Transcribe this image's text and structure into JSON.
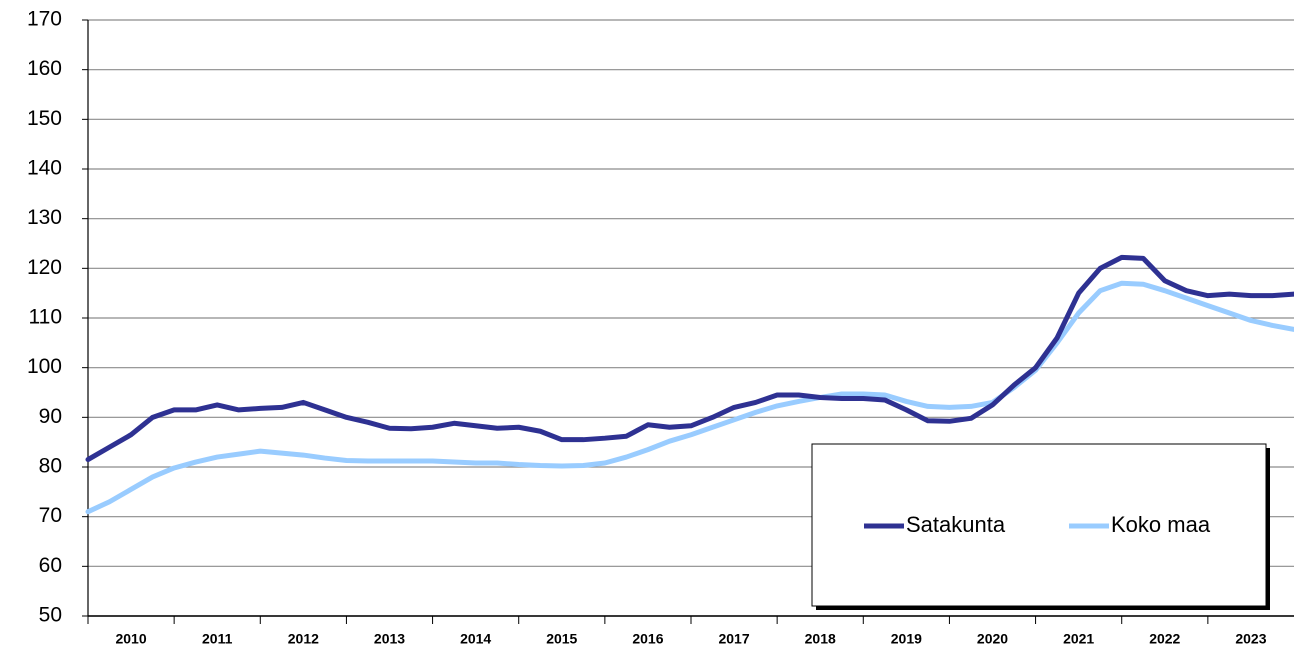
{
  "chart_data": {
    "type": "line",
    "x": [
      2010,
      2010.25,
      2010.5,
      2010.75,
      2011,
      2011.25,
      2011.5,
      2011.75,
      2012,
      2012.25,
      2012.5,
      2012.75,
      2013,
      2013.25,
      2013.5,
      2013.75,
      2014,
      2014.25,
      2014.5,
      2014.75,
      2015,
      2015.25,
      2015.5,
      2015.75,
      2016,
      2016.25,
      2016.5,
      2016.75,
      2017,
      2017.25,
      2017.5,
      2017.75,
      2018,
      2018.25,
      2018.5,
      2018.75,
      2019,
      2019.25,
      2019.5,
      2019.75,
      2020,
      2020.25,
      2020.5,
      2020.75,
      2021,
      2021.25,
      2021.5,
      2021.75,
      2022,
      2022.25,
      2022.5,
      2022.75,
      2023,
      2023.25,
      2023.5,
      2023.75,
      2024
    ],
    "series": [
      {
        "name": "Satakunta",
        "color": "#2e3192",
        "values": [
          81.5,
          84,
          86.5,
          90,
          91.5,
          91.5,
          92.5,
          91.5,
          91.8,
          92,
          93,
          91.5,
          90,
          89,
          87.8,
          87.7,
          88,
          88.8,
          88.3,
          87.8,
          88,
          87.2,
          85.5,
          85.5,
          85.8,
          86.2,
          88.5,
          88,
          88.3,
          90,
          92,
          93,
          94.5,
          94.5,
          94,
          93.8,
          93.8,
          93.5,
          91.5,
          89.3,
          89.2,
          89.8,
          92.5,
          96.5,
          100,
          106,
          115,
          120,
          122.2,
          122,
          117.5,
          115.5,
          114.5,
          114.8,
          114.5,
          114.5,
          114.8
        ]
      },
      {
        "name": "Koko maa",
        "color": "#99ccff",
        "values": [
          71,
          73,
          75.5,
          78,
          79.8,
          81,
          82,
          82.6,
          83.2,
          82.8,
          82.4,
          81.8,
          81.3,
          81.2,
          81.2,
          81.2,
          81.2,
          81,
          80.8,
          80.8,
          80.5,
          80.3,
          80.2,
          80.3,
          80.8,
          82,
          83.5,
          85.2,
          86.5,
          88,
          89.5,
          91,
          92.3,
          93.2,
          94,
          94.7,
          94.7,
          94.5,
          93.2,
          92.2,
          92,
          92.2,
          93,
          96,
          99.5,
          105,
          111,
          115.5,
          117,
          116.8,
          115.5,
          114,
          112.5,
          111,
          109.5,
          108.5,
          107.7
        ]
      }
    ],
    "xlim": [
      2010,
      2024
    ],
    "xticks": [
      2010,
      2011,
      2012,
      2013,
      2014,
      2015,
      2016,
      2017,
      2018,
      2019,
      2020,
      2021,
      2022,
      2023
    ],
    "ylim": [
      50,
      170
    ],
    "yticks": [
      50,
      60,
      70,
      80,
      90,
      100,
      110,
      120,
      130,
      140,
      150,
      160,
      170
    ],
    "grid": true,
    "legend": "lower right"
  }
}
